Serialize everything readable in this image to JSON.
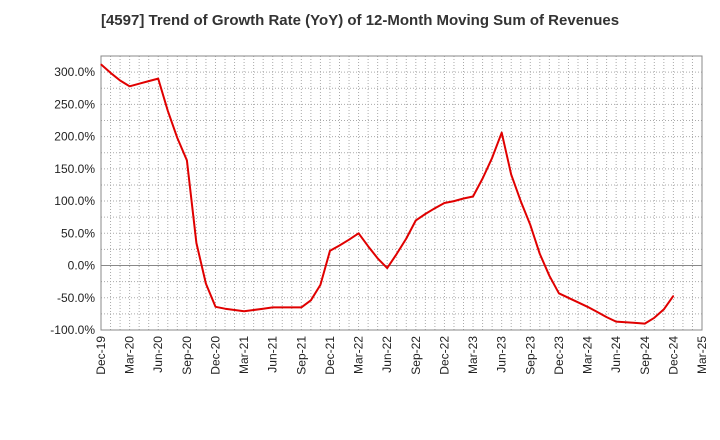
{
  "chart_data": {
    "type": "line",
    "title": "[4597]  Trend of Growth Rate (YoY) of 12-Month Moving Sum of Revenues",
    "xlabel": "",
    "ylabel": "",
    "ylim": [
      -100,
      325
    ],
    "y_ticks": [
      -100,
      -50,
      0,
      50,
      100,
      150,
      200,
      250,
      300
    ],
    "y_tick_labels": [
      "-100.0%",
      "-50.0%",
      "0.0%",
      "50.0%",
      "100.0%",
      "150.0%",
      "200.0%",
      "250.0%",
      "300.0%"
    ],
    "x_tick_labels": [
      "Dec-19",
      "Mar-20",
      "Jun-20",
      "Sep-20",
      "Dec-20",
      "Mar-21",
      "Jun-21",
      "Sep-21",
      "Dec-21",
      "Mar-22",
      "Jun-22",
      "Sep-22",
      "Dec-22",
      "Mar-23",
      "Jun-23",
      "Sep-23",
      "Dec-23",
      "Mar-24",
      "Jun-24",
      "Sep-24",
      "Dec-24",
      "Mar-25"
    ],
    "x_months": 63,
    "grid": true,
    "line_color": "#e00000",
    "series": [
      {
        "values": [
          312,
          299,
          287,
          278,
          282,
          286,
          290,
          240,
          198,
          163,
          35,
          -28,
          -64,
          -67,
          -69,
          -71,
          -69,
          -67,
          -65,
          -65,
          -65,
          -65,
          -54,
          -30,
          23,
          31,
          40,
          50,
          30,
          11,
          -4,
          18,
          42,
          70,
          80,
          89,
          97,
          100,
          104,
          107,
          135,
          167,
          206,
          141,
          100,
          63,
          18,
          -16,
          -43,
          -50,
          -57,
          -64,
          -72,
          -80,
          -87,
          -88,
          -89,
          -90,
          -81,
          -68,
          -47
        ]
      }
    ]
  }
}
